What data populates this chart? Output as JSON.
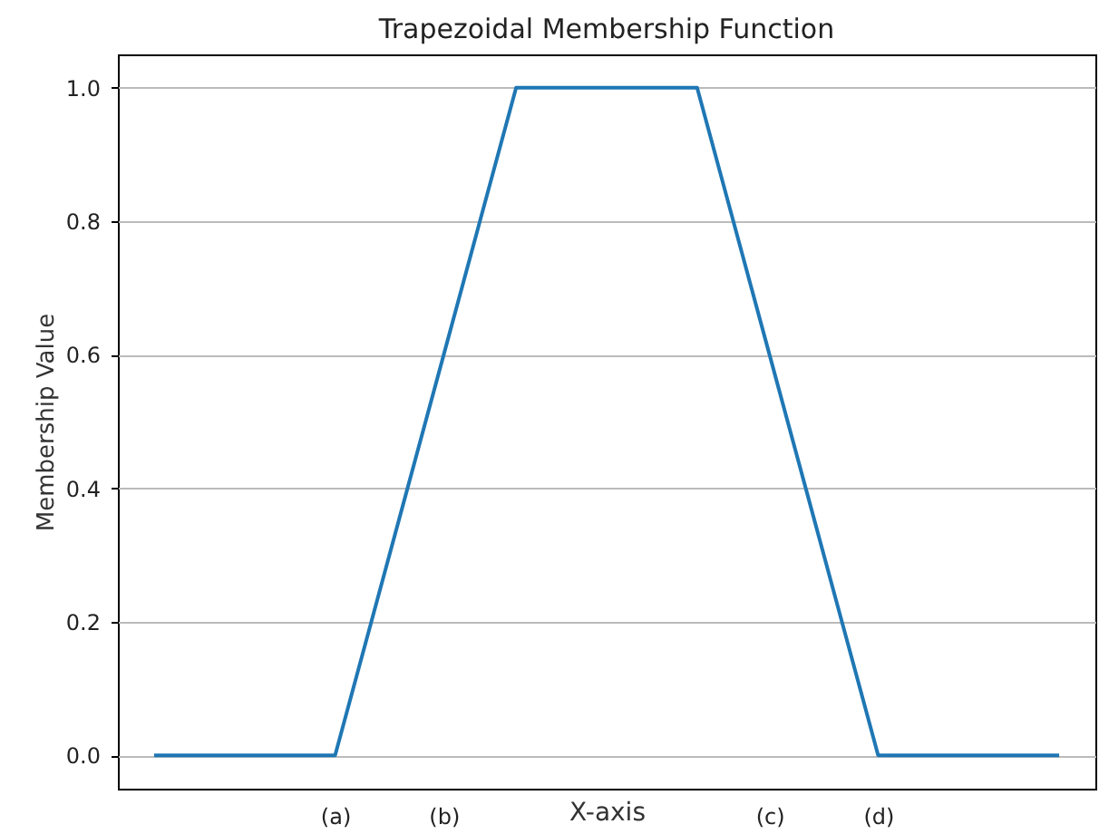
{
  "chart_data": {
    "type": "line",
    "title": "Trapezoidal Membership Function",
    "xlabel": "X-axis",
    "ylabel": "Membership Value",
    "categories": [
      null,
      null,
      null,
      null,
      null,
      "(a)",
      null,
      null,
      "(b)",
      null,
      null,
      null,
      null,
      null,
      null,
      null,
      null,
      "(c)",
      null,
      null,
      "(d)",
      null,
      null,
      null,
      null,
      null
    ],
    "series": [
      {
        "color": "#1f77b4",
        "values": [
          0,
          0,
          0,
          0,
          0,
          0,
          0.2,
          0.4,
          0.6,
          0.8,
          1,
          1,
          1,
          1,
          1,
          1,
          0.8,
          0.6,
          0.4,
          0.2,
          0,
          0,
          0,
          0,
          0,
          0
        ]
      }
    ],
    "ylim": [
      -0.05,
      1.05
    ],
    "yticks": [
      {
        "value": 0,
        "label": "0.0"
      },
      {
        "value": 0.2,
        "label": "0.2"
      },
      {
        "value": 0.4,
        "label": "0.4"
      },
      {
        "value": 0.6,
        "label": "0.6"
      },
      {
        "value": 0.8,
        "label": "0.8"
      },
      {
        "value": 1,
        "label": "1.0"
      }
    ],
    "grid": "y",
    "marker": "none",
    "line_style": "solid"
  }
}
